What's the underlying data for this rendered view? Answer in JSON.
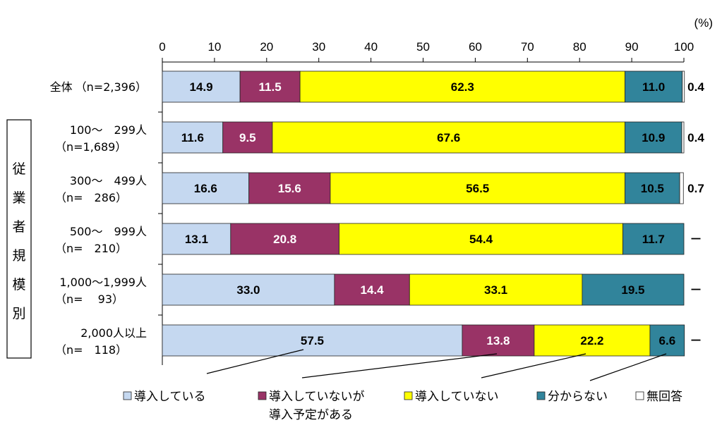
{
  "chart_data": {
    "type": "bar",
    "orientation": "horizontal",
    "stacked": true,
    "unit_label": "(%)",
    "xlim": [
      0,
      100
    ],
    "x_ticks": [
      "0",
      "10",
      "20",
      "30",
      "40",
      "50",
      "60",
      "70",
      "80",
      "90",
      "100"
    ],
    "group_label": "従業者規模別",
    "categories": [
      {
        "line1": "全体",
        "line2": "（n=2,396）",
        "single_line": true
      },
      {
        "line1": "100～　299人",
        "line2": "（n=1,689）",
        "single_line": false
      },
      {
        "line1": "300～　499人",
        "line2": "（n=　286）",
        "single_line": false
      },
      {
        "line1": "500～　999人",
        "line2": "（n=　210）",
        "single_line": false
      },
      {
        "line1": "1,000～1,999人",
        "line2": "（n=　 93）",
        "single_line": false
      },
      {
        "line1": "2,000人以上",
        "line2": "（n=　118）",
        "single_line": false
      }
    ],
    "series": [
      {
        "name": "導入している",
        "color": "#c5d8f0",
        "text_color": "#000000",
        "values": [
          14.9,
          11.6,
          16.6,
          13.1,
          33.0,
          57.5
        ],
        "labels": [
          "14.9",
          "11.6",
          "16.6",
          "13.1",
          "33.0",
          "57.5"
        ]
      },
      {
        "name": "導入していないが導入予定がある",
        "legend_line1": "導入していないが",
        "legend_line2": "導入予定がある",
        "color": "#993366",
        "text_color": "#ffffff",
        "values": [
          11.5,
          9.5,
          15.6,
          20.8,
          14.4,
          13.8
        ],
        "labels": [
          "11.5",
          "9.5",
          "15.6",
          "20.8",
          "14.4",
          "13.8"
        ]
      },
      {
        "name": "導入していない",
        "color": "#ffff00",
        "text_color": "#000000",
        "values": [
          62.3,
          67.6,
          56.5,
          54.4,
          33.1,
          22.2
        ],
        "labels": [
          "62.3",
          "67.6",
          "56.5",
          "54.4",
          "33.1",
          "22.2"
        ]
      },
      {
        "name": "分からない",
        "color": "#31849b",
        "text_color": "#000000",
        "values": [
          11.0,
          10.9,
          10.5,
          11.7,
          19.5,
          6.6
        ],
        "labels": [
          "11.0",
          "10.9",
          "10.5",
          "11.7",
          "19.5",
          "6.6"
        ]
      },
      {
        "name": "無回答",
        "color": "#ffffff",
        "text_color": "#000000",
        "values": [
          0.4,
          0.4,
          0.7,
          0,
          0,
          0
        ],
        "labels": [
          "0.4",
          "0.4",
          "0.7",
          "－",
          "－",
          "－"
        ]
      }
    ],
    "legend_position": "bottom"
  }
}
